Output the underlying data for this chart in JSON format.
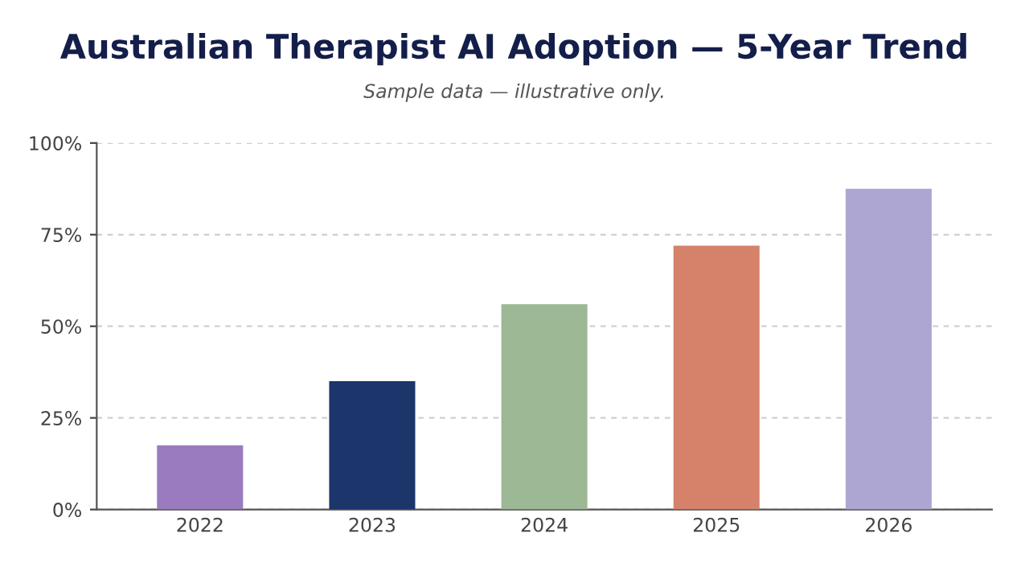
{
  "chart_data": {
    "type": "bar",
    "title": "Australian Therapist AI Adoption — 5-Year Trend",
    "subtitle": "Sample data — illustrative only.",
    "categories": [
      "2022",
      "2023",
      "2024",
      "2025",
      "2026"
    ],
    "values": [
      17.5,
      35,
      56,
      72,
      87.5
    ],
    "colors": [
      "#9b7bbf",
      "#1c356b",
      "#9cb894",
      "#d6826a",
      "#aea6d2"
    ],
    "ylim": [
      0,
      100
    ],
    "yticks": [
      {
        "value": 0,
        "label": "0%"
      },
      {
        "value": 25,
        "label": "25%"
      },
      {
        "value": 50,
        "label": "50%"
      },
      {
        "value": 75,
        "label": "75%"
      },
      {
        "value": 100,
        "label": "100%"
      }
    ],
    "grid": "y"
  }
}
